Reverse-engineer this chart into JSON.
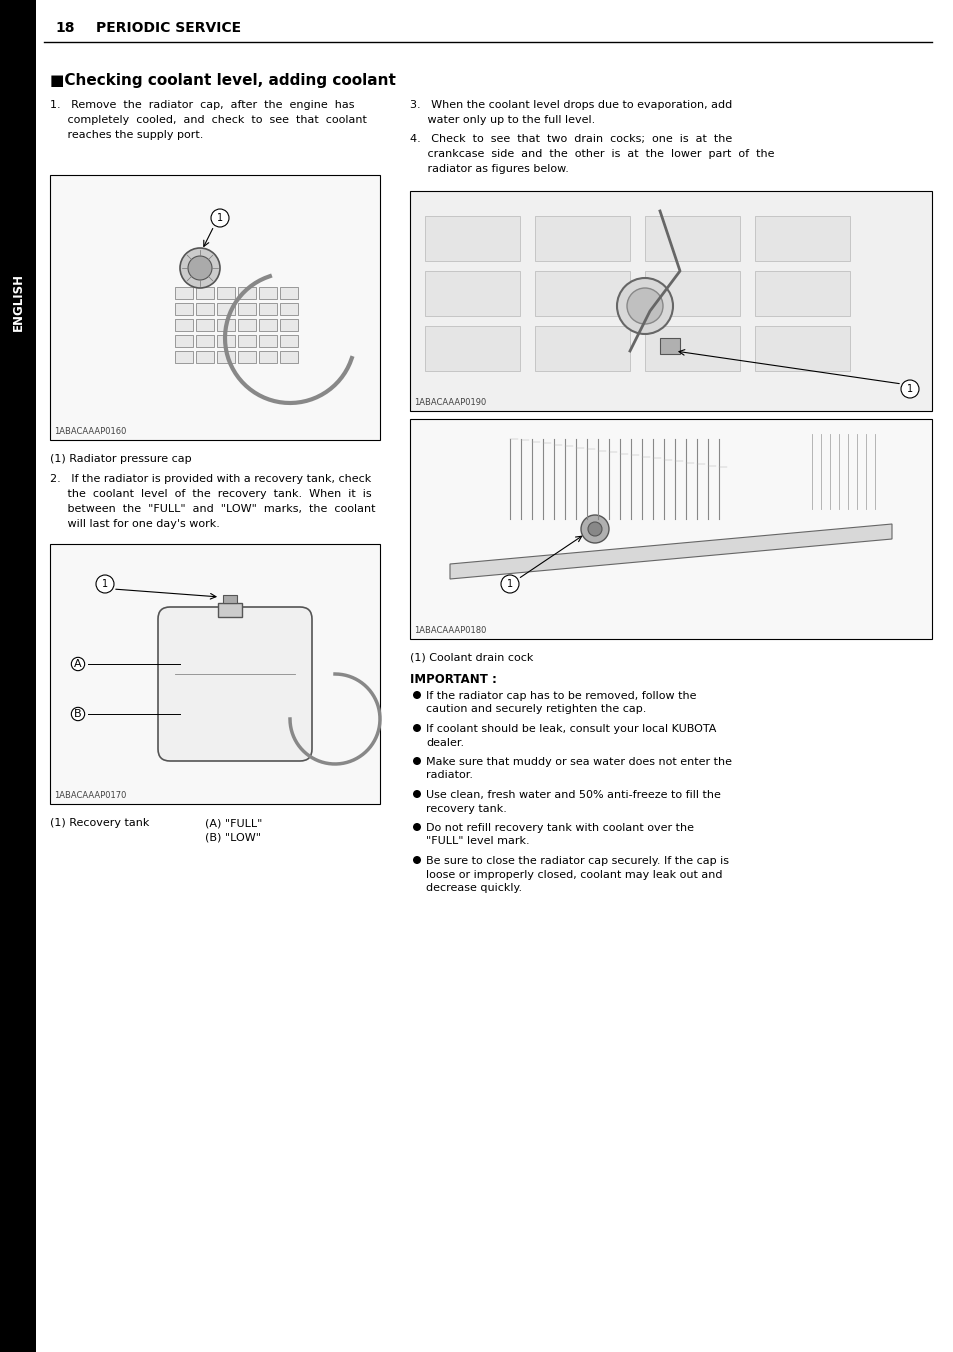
{
  "page_number": "18",
  "chapter_title": "PERIODIC SERVICE",
  "sidebar_text": "ENGLISH",
  "section_title": "■Checking coolant level, adding coolant",
  "para1_lines": [
    "1.   Remove  the  radiator  cap,  after  the  engine  has",
    "     completely  cooled,  and  check  to  see  that  coolant",
    "     reaches the supply port."
  ],
  "image1_label": "1ABACAAAP0160",
  "image1_caption": "(1) Radiator pressure cap",
  "para2_lines": [
    "2.   If the radiator is provided with a recovery tank, check",
    "     the  coolant  level  of  the  recovery  tank.  When  it  is",
    "     between  the  \"FULL\"  and  \"LOW\"  marks,  the  coolant",
    "     will last for one day's work."
  ],
  "image2_label": "1ABACAAAP0170",
  "image2_caption1": "(1) Recovery tank",
  "image2_caption2a": "(A) \"FULL\"",
  "image2_caption2b": "(B) \"LOW\"",
  "para3_lines": [
    "3.   When the coolant level drops due to evaporation, add",
    "     water only up to the full level."
  ],
  "para4_lines": [
    "4.   Check  to  see  that  two  drain  cocks;  one  is  at  the",
    "     crankcase  side  and  the  other  is  at  the  lower  part  of  the",
    "     radiator as figures below."
  ],
  "image3_label": "1ABACAAAP0190",
  "image4_label": "1ABACAAAP0180",
  "image4_caption": "(1) Coolant drain cock",
  "important_title": "IMPORTANT :",
  "important_bullets": [
    "If the radiator cap has to be removed, follow the\ncaution and securely retighten the cap.",
    "If coolant should be leak, consult your local KUBOTA\ndealer.",
    "Make sure that muddy or sea water does not enter the\nradiator.",
    "Use clean, fresh water and 50% anti-freeze to fill the\nrecovery tank.",
    "Do not refill recovery tank with coolant over the\n\"FULL\" level mark.",
    "Be sure to close the radiator cap securely. If the cap is\nloose or improperly closed, coolant may leak out and\ndecrease quickly."
  ],
  "bg_color": "#ffffff",
  "text_color": "#000000",
  "sidebar_bg": "#000000",
  "sidebar_text_color": "#ffffff",
  "border_color": "#000000"
}
